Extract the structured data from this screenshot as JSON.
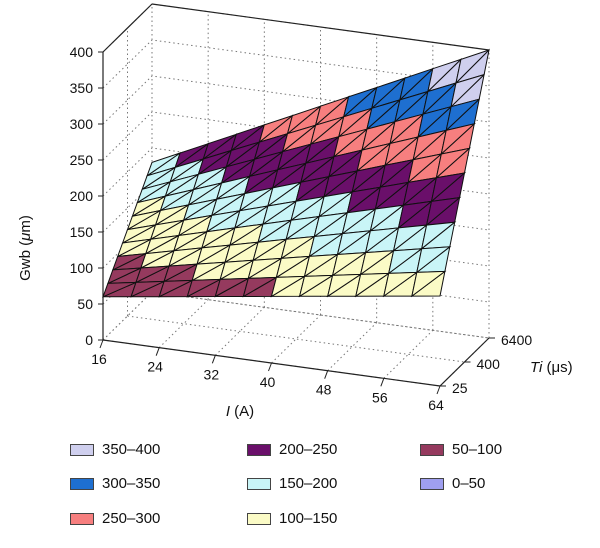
{
  "chart_data": {
    "type": "surface-3d",
    "ylabel_prefix": "Gwb (",
    "ylabel_unit": "μ",
    "ylabel_suffix": "m)",
    "xlabel_italic": "I",
    "xlabel_rest": " (A)",
    "zlabel_italic": "Ti",
    "zlabel_rest": " (μs)",
    "z_ticks": [
      "0",
      "50",
      "100",
      "150",
      "200",
      "250",
      "300",
      "350",
      "400"
    ],
    "zlim": [
      0,
      400
    ],
    "x_ticks": [
      "16",
      "24",
      "32",
      "40",
      "48",
      "56",
      "64"
    ],
    "xlim": [
      16,
      64
    ],
    "y_ticks": [
      "25",
      "400",
      "6400"
    ],
    "grid": true,
    "surface": {
      "front_edge_Ti_25": [
        [
          16,
          60
        ],
        [
          64,
          125
        ]
      ],
      "back_edge_Ti_6400": [
        [
          16,
          180
        ],
        [
          64,
          400
        ]
      ]
    },
    "bands": [
      {
        "range": "350–400",
        "min": 350,
        "max": 400,
        "color": "#cfcfee"
      },
      {
        "range": "300–350",
        "min": 300,
        "max": 350,
        "color": "#1e6fd0"
      },
      {
        "range": "250–300",
        "min": 250,
        "max": 300,
        "color": "#f77f7f"
      },
      {
        "range": "200–250",
        "min": 200,
        "max": 250,
        "color": "#6a0f6a"
      },
      {
        "range": "150–200",
        "min": 150,
        "max": 200,
        "color": "#c9f5f7"
      },
      {
        "range": "100–150",
        "min": 100,
        "max": 150,
        "color": "#fbfbc6"
      },
      {
        "range": "50–100",
        "min": 50,
        "max": 100,
        "color": "#953a5e"
      },
      {
        "range": "0–50",
        "min": 0,
        "max": 50,
        "color": "#9f9ff0"
      }
    ]
  }
}
